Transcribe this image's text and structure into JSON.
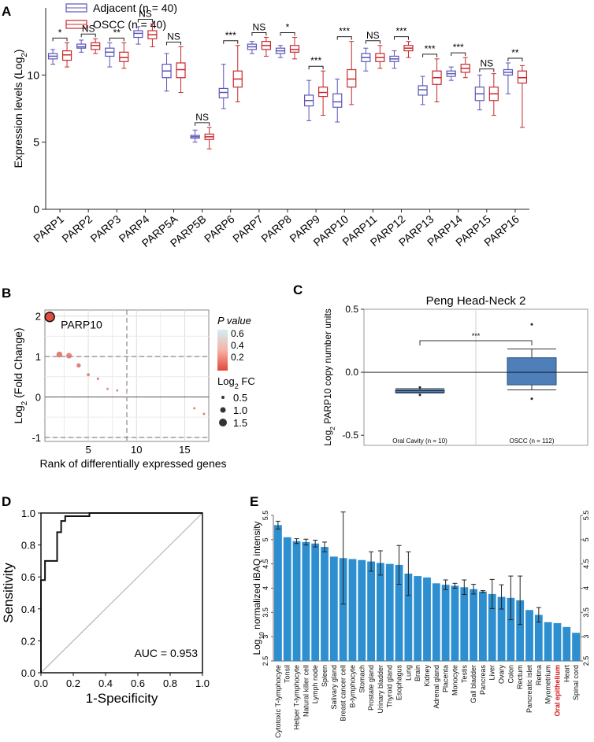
{
  "chart_data": [
    {
      "panel": "A",
      "type": "box",
      "ylabel": "Expression levels (Log",
      "ylabel_sub": "2",
      "ylabel_tail": ")",
      "ylim": [
        0,
        15
      ],
      "yticks": [
        0,
        5,
        10
      ],
      "legend": [
        {
          "name": "Adjacent (n = 40)",
          "color": "#5b55b8"
        },
        {
          "name": "OSCC (n = 40)",
          "color": "#c8282d"
        }
      ],
      "categories": [
        "PARP1",
        "PARP2",
        "PARP3",
        "PARP4",
        "PARP5A",
        "PARP5B",
        "PARP6",
        "PARP7",
        "PARP8",
        "PARP9",
        "PARP10",
        "PARP11",
        "PARP12",
        "PARP13",
        "PARP14",
        "PARP15",
        "PARP16"
      ],
      "significance": [
        "*",
        "NS",
        "**",
        "NS",
        "NS",
        "NS",
        "***",
        "NS",
        "*",
        "***",
        "***",
        "NS",
        "***",
        "***",
        "***",
        "NS",
        "**"
      ],
      "series": [
        {
          "name": "Adjacent",
          "boxes": [
            [
              10.8,
              11.2,
              11.4,
              11.6,
              11.9
            ],
            [
              11.7,
              12.0,
              12.1,
              12.3,
              12.6
            ],
            [
              10.6,
              11.4,
              11.7,
              12.0,
              12.4
            ],
            [
              12.3,
              12.8,
              13.1,
              13.3,
              13.6
            ],
            [
              8.8,
              9.8,
              10.3,
              10.8,
              11.6
            ],
            [
              5.0,
              5.3,
              5.4,
              5.5,
              5.9
            ],
            [
              7.5,
              8.3,
              8.7,
              9.0,
              10.8
            ],
            [
              11.6,
              11.9,
              12.1,
              12.3,
              12.5
            ],
            [
              11.3,
              11.6,
              11.8,
              12.0,
              12.2
            ],
            [
              6.6,
              7.7,
              8.1,
              8.5,
              9.6
            ],
            [
              6.5,
              7.6,
              8.0,
              8.6,
              9.7
            ],
            [
              10.3,
              11.0,
              11.3,
              11.6,
              12.0
            ],
            [
              10.5,
              11.0,
              11.2,
              11.4,
              11.8
            ],
            [
              7.8,
              8.5,
              8.9,
              9.2,
              9.9
            ],
            [
              9.6,
              9.9,
              10.1,
              10.3,
              10.6
            ],
            [
              7.4,
              8.1,
              8.6,
              9.1,
              10.0
            ],
            [
              8.6,
              10.0,
              10.2,
              10.4,
              10.9
            ]
          ]
        },
        {
          "name": "OSCC",
          "boxes": [
            [
              10.6,
              11.1,
              11.5,
              11.8,
              12.4
            ],
            [
              11.6,
              11.9,
              12.2,
              12.4,
              12.7
            ],
            [
              10.5,
              11.0,
              11.3,
              11.7,
              12.4
            ],
            [
              12.1,
              12.7,
              13.0,
              13.3,
              13.8
            ],
            [
              8.7,
              9.8,
              10.4,
              10.9,
              12.1
            ],
            [
              4.5,
              5.2,
              5.4,
              5.6,
              6.1
            ],
            [
              8.0,
              9.1,
              9.7,
              10.3,
              12.2
            ],
            [
              11.4,
              11.9,
              12.2,
              12.5,
              12.8
            ],
            [
              11.2,
              11.7,
              11.9,
              12.2,
              12.8
            ],
            [
              7.0,
              8.4,
              8.7,
              9.1,
              10.3
            ],
            [
              7.8,
              9.1,
              9.7,
              10.4,
              12.5
            ],
            [
              10.5,
              11.0,
              11.3,
              11.6,
              12.2
            ],
            [
              11.3,
              11.8,
              12.0,
              12.2,
              12.5
            ],
            [
              8.0,
              9.3,
              9.8,
              10.3,
              11.2
            ],
            [
              9.8,
              10.2,
              10.5,
              10.8,
              11.3
            ],
            [
              7.0,
              8.1,
              8.6,
              9.1,
              10.1
            ],
            [
              6.1,
              9.4,
              9.8,
              10.3,
              10.7
            ]
          ]
        }
      ]
    },
    {
      "panel": "B",
      "type": "scatter",
      "xlabel": "Rank of differentially expressed genes",
      "ylabel": "Log",
      "ylabel_sub": "2",
      "ylabel_tail": " (Fold Change)",
      "xlim": [
        0.5,
        17.5
      ],
      "ylim": [
        -1.1,
        2.15
      ],
      "xticks": [
        5,
        10,
        15
      ],
      "yticks": [
        -1,
        0,
        1,
        2
      ],
      "hlines": [
        1,
        -1
      ],
      "vline": 9,
      "highlight_label": "PARP10",
      "legend_p_title": "P value",
      "legend_p_ticks": [
        "0.6",
        "0.4",
        "0.2"
      ],
      "legend_fc_title": "Log",
      "legend_fc_sub": "2",
      "legend_fc_tail": " FC",
      "legend_fc_items": [
        "0.5",
        "1.0",
        "1.5"
      ],
      "points": [
        {
          "x": 1,
          "y": 1.98,
          "p": 0.12
        },
        {
          "x": 2,
          "y": 1.05,
          "p": 0.22
        },
        {
          "x": 3,
          "y": 1.02,
          "p": 0.25
        },
        {
          "x": 4,
          "y": 0.78,
          "p": 0.24
        },
        {
          "x": 5,
          "y": 0.55,
          "p": 0.26
        },
        {
          "x": 6,
          "y": 0.45,
          "p": 0.24
        },
        {
          "x": 7,
          "y": 0.2,
          "p": 0.28
        },
        {
          "x": 8,
          "y": 0.16,
          "p": 0.3
        },
        {
          "x": 9,
          "y": 0.1,
          "p": 0.55
        },
        {
          "x": 16,
          "y": -0.28,
          "p": 0.24
        },
        {
          "x": 17,
          "y": -0.42,
          "p": 0.22
        }
      ]
    },
    {
      "panel": "C",
      "type": "box",
      "title": "Peng Head-Neck 2",
      "ylabel": "Log",
      "ylabel_sub": "2",
      "ylabel_tail": " PARP10 copy number units",
      "ylim": [
        -0.58,
        0.5
      ],
      "yticks": [
        -0.5,
        0.0,
        0.5
      ],
      "ytick_labels": [
        "-0.5",
        "0.0",
        "0.5"
      ],
      "categories": [
        "Oral Cavity (n = 10)",
        "OSCC (n = 112)"
      ],
      "significance": "***",
      "boxes": [
        [
          -0.165,
          -0.16,
          -0.145,
          -0.14,
          -0.13
        ],
        [
          -0.14,
          -0.1,
          0.0,
          0.115,
          0.185
        ]
      ],
      "outliers": [
        [
          -0.12,
          -0.18
        ],
        [
          0.38,
          -0.21
        ]
      ]
    },
    {
      "panel": "D",
      "type": "line",
      "xlabel": "1-Specificity",
      "ylabel": "Sensitivity",
      "xlim": [
        0,
        1
      ],
      "ylim": [
        0,
        1
      ],
      "xticks": [
        "0.0",
        "0.2",
        "0.4",
        "0.6",
        "0.8",
        "1.0"
      ],
      "yticks": [
        "0.0",
        "0.2",
        "0.4",
        "0.6",
        "0.8",
        "1.0"
      ],
      "annotation": "AUC = 0.953",
      "roc": [
        [
          0,
          0
        ],
        [
          0,
          0.58
        ],
        [
          0.025,
          0.58
        ],
        [
          0.025,
          0.7
        ],
        [
          0.1,
          0.7
        ],
        [
          0.1,
          0.88
        ],
        [
          0.125,
          0.88
        ],
        [
          0.125,
          0.95
        ],
        [
          0.15,
          0.95
        ],
        [
          0.15,
          0.98
        ],
        [
          0.3,
          0.98
        ],
        [
          0.3,
          1.0
        ],
        [
          1,
          1
        ]
      ]
    },
    {
      "panel": "E",
      "type": "bar",
      "ylabel": "Log",
      "ylabel_sub": "10",
      "ylabel_tail": " normalized iBAQ intensity",
      "ylim": [
        2.5,
        5.5
      ],
      "yticks": [
        "2.5",
        "3",
        "3.5",
        "4",
        "4.5",
        "5",
        "5.5"
      ],
      "bar_color": "#2e8fd0",
      "highlight_category": "Oral epithelium",
      "highlight_color": "#d7191c",
      "categories": [
        "Cytotoxic T-lymphocyte",
        "Tonsil",
        "Helper T-lymphocyte",
        "Natural killer cell",
        "Lymph node",
        "Spleen",
        "Salivary gland",
        "Breast cancer cell",
        "B-lymphocyte",
        "Stomach",
        "Prostate gland",
        "Urinary bladder",
        "Thyroid gland",
        "Esophagus",
        "Lung",
        "Brain",
        "Kidney",
        "Adrenal gland",
        "Placenta",
        "Monocyte",
        "Testis",
        "Gall bladder",
        "Pancreas",
        "Liver",
        "Ovary",
        "Colon",
        "Rectum",
        "Pancreatic islet",
        "Retina",
        "Myometrium",
        "Oral epithelium",
        "Heart",
        "Spinal cord"
      ],
      "values": [
        5.3,
        5.05,
        4.97,
        4.95,
        4.92,
        4.85,
        4.65,
        4.62,
        4.6,
        4.58,
        4.55,
        4.52,
        4.5,
        4.48,
        4.3,
        4.25,
        4.22,
        4.1,
        4.07,
        4.05,
        4.02,
        3.98,
        3.93,
        3.88,
        3.82,
        3.8,
        3.75,
        3.55,
        3.45,
        3.3,
        3.28,
        3.2,
        3.08
      ],
      "errors": [
        0.08,
        0.0,
        0.05,
        0.06,
        0.07,
        0.1,
        0.0,
        0.95,
        0.0,
        0.0,
        0.2,
        0.25,
        0.0,
        0.4,
        0.45,
        0.0,
        0.0,
        0.0,
        0.1,
        0.05,
        0.15,
        0.1,
        0.02,
        0.3,
        0.25,
        0.45,
        0.5,
        0.0,
        0.15,
        0.0,
        0.0,
        0.0,
        0.0
      ]
    }
  ],
  "panel_labels": [
    "A",
    "B",
    "C",
    "D",
    "E"
  ]
}
